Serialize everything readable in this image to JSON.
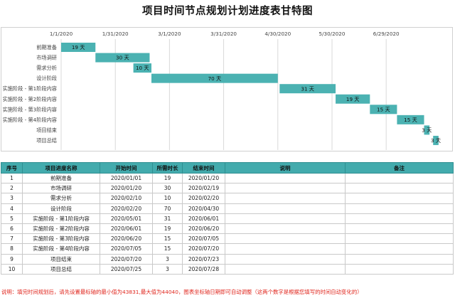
{
  "title": "项目时间节点规划计划进度表甘特图",
  "chart_data": {
    "type": "bar",
    "orientation": "horizontal-gantt",
    "x_ticks": [
      "1/1/2020",
      "1/31/2020",
      "3/1/2020",
      "3/31/2020",
      "4/30/2020",
      "5/30/2020",
      "6/29/2020"
    ],
    "xlim": [
      "2020-01-01",
      "2020-08-01"
    ],
    "grid": true,
    "color": "#4bb2b2",
    "duration_unit": "天",
    "tasks": [
      {
        "name": "前期准备",
        "start": "2020-01-01",
        "duration": 19
      },
      {
        "name": "市场调研",
        "start": "2020-01-20",
        "duration": 30
      },
      {
        "name": "需求分析",
        "start": "2020-02-10",
        "duration": 10
      },
      {
        "name": "设计阶段",
        "start": "2020-02-20",
        "duration": 70
      },
      {
        "name": "实施阶段 - 第1阶段内容",
        "start": "2020-05-01",
        "duration": 31
      },
      {
        "name": "实施阶段 - 第2阶段内容",
        "start": "2020-06-01",
        "duration": 19
      },
      {
        "name": "实施阶段 - 第3阶段内容",
        "start": "2020-06-20",
        "duration": 15
      },
      {
        "name": "实施阶段 - 第4阶段内容",
        "start": "2020-07-05",
        "duration": 15
      },
      {
        "name": "项目结束",
        "start": "2020-07-20",
        "duration": 3
      },
      {
        "name": "项目总结",
        "start": "2020-07-25",
        "duration": 3
      }
    ]
  },
  "table": {
    "headers": [
      "序号",
      "项目进度名称",
      "开始时间",
      "所需时长",
      "结束时间",
      "说明",
      "备注"
    ],
    "rows": [
      [
        "1",
        "前期准备",
        "2020/01/01",
        "19",
        "2020/01/20",
        "",
        ""
      ],
      [
        "2",
        "市场调研",
        "2020/01/20",
        "30",
        "2020/02/19",
        "",
        ""
      ],
      [
        "3",
        "需求分析",
        "2020/02/10",
        "10",
        "2020/02/20",
        "",
        ""
      ],
      [
        "4",
        "设计阶段",
        "2020/02/20",
        "70",
        "2020/04/30",
        "",
        ""
      ],
      [
        "5",
        "实施阶段 - 第1阶段内容",
        "2020/05/01",
        "31",
        "2020/06/01",
        "",
        ""
      ],
      [
        "6",
        "实施阶段 - 第2阶段内容",
        "2020/06/01",
        "19",
        "2020/06/20",
        "",
        ""
      ],
      [
        "7",
        "实施阶段 - 第3阶段内容",
        "2020/06/20",
        "15",
        "2020/07/05",
        "",
        ""
      ],
      [
        "8",
        "实施阶段 - 第4阶段内容",
        "2020/07/05",
        "15",
        "2020/07/20",
        "",
        ""
      ],
      [
        "9",
        "项目结束",
        "2020/07/20",
        "3",
        "2020/07/23",
        "",
        ""
      ],
      [
        "10",
        "项目总结",
        "2020/07/25",
        "3",
        "2020/07/28",
        "",
        ""
      ]
    ]
  },
  "note": "说明：填完时间规划后，请先设置最标轴的最小值为43831,最大值为44040，图表坐标轴日期即可自动调整（这两个数字是根据您填写的时间自动变化的）"
}
